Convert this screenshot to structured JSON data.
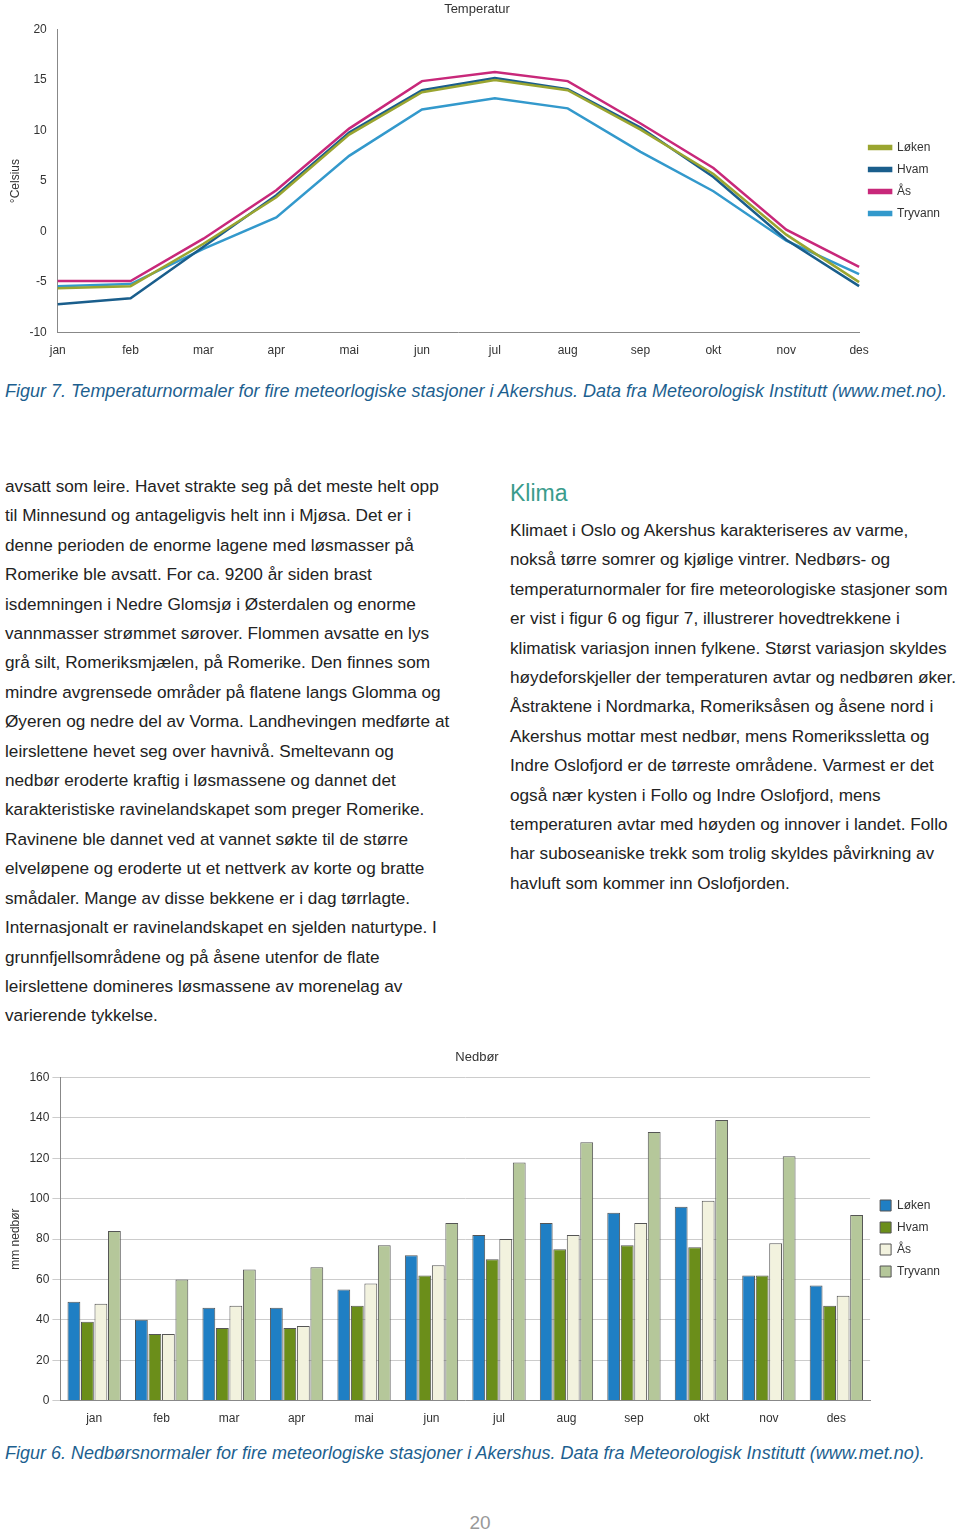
{
  "chart_data": [
    {
      "type": "line",
      "title": "Temperatur",
      "ylabel": "°Celsius",
      "categories": [
        "jan",
        "feb",
        "mar",
        "apr",
        "mai",
        "jun",
        "jul",
        "aug",
        "sep",
        "okt",
        "nov",
        "des"
      ],
      "series": [
        {
          "name": "Løken",
          "color": "#9aa530",
          "values": [
            -5.6,
            -5.4,
            -1.2,
            3.4,
            9.6,
            13.8,
            15.0,
            14.0,
            10.1,
            5.7,
            -0.3,
            -5.0
          ]
        },
        {
          "name": "Hvam",
          "color": "#1a5e8c",
          "values": [
            -7.2,
            -6.6,
            -1.5,
            3.6,
            9.8,
            14.0,
            15.2,
            14.1,
            10.3,
            5.4,
            -0.8,
            -5.4
          ]
        },
        {
          "name": "Ås",
          "color": "#c8287a",
          "values": [
            -4.9,
            -4.9,
            -0.7,
            4.1,
            10.2,
            14.9,
            15.8,
            14.9,
            10.7,
            6.3,
            0.2,
            -3.5
          ]
        },
        {
          "name": "Tryvann",
          "color": "#3399cc",
          "values": [
            -5.4,
            -5.2,
            -1.7,
            1.4,
            7.5,
            12.1,
            13.2,
            12.2,
            7.9,
            4.0,
            -0.9,
            -4.2
          ]
        }
      ],
      "ylim": [
        -10,
        20
      ],
      "yticks": [
        -10,
        -5,
        0,
        5,
        10,
        15,
        20
      ],
      "grid": false,
      "legend": "right"
    },
    {
      "type": "bar",
      "title": "Nedbør",
      "ylabel": "mm nedbør",
      "categories": [
        "jan",
        "feb",
        "mar",
        "apr",
        "mai",
        "jun",
        "jul",
        "aug",
        "sep",
        "okt",
        "nov",
        "des"
      ],
      "series": [
        {
          "name": "Løken",
          "color": "#1f7fc4",
          "values": [
            49,
            40,
            46,
            46,
            55,
            72,
            82,
            88,
            93,
            96,
            62,
            57
          ]
        },
        {
          "name": "Hvam",
          "color": "#6b8e1a",
          "values": [
            39,
            33,
            36,
            36,
            47,
            62,
            70,
            75,
            77,
            76,
            62,
            47
          ]
        },
        {
          "name": "Ås",
          "color": "#f2f2de",
          "values": [
            48,
            33,
            47,
            37,
            58,
            67,
            80,
            82,
            88,
            99,
            78,
            52
          ]
        },
        {
          "name": "Tryvann",
          "color": "#b5c79a",
          "values": [
            84,
            60,
            65,
            66,
            77,
            88,
            118,
            128,
            133,
            139,
            121,
            92
          ]
        }
      ],
      "ylim": [
        0,
        160
      ],
      "yticks": [
        0,
        20,
        40,
        60,
        80,
        100,
        120,
        140,
        160
      ],
      "grid": true,
      "legend": "right"
    }
  ],
  "captions": [
    "Figur 7. Temperaturnormaler for fire meteorlogiske stasjoner i Akershus. Data fra Meteorologisk Institutt (www.met.no).",
    "Figur 6. Nedbørsnormaler for fire meteorlogiske stasjoner i Akershus. Data fra Meteorologisk Institutt (www.met.no)."
  ],
  "text": {
    "left": "avsatt som leire. Havet strakte seg på det meste helt opp til Minnesund og antageligvis helt inn i Mjøsa. Det er i denne perioden de enorme lagene med løsmasser på Romerike ble avsatt. For ca. 9200 år siden brast isdemningen i Nedre Glomsjø i Østerdalen og enorme vannmasser strømmet sørover. Flommen avsatte en lys grå silt, Romeriksmjælen, på Romerike. Den finnes som mindre avgrensede områder på flatene langs Glomma og Øyeren og nedre del av Vorma. Landhevingen medførte at leirslettene hevet seg over havnivå. Smeltevann og nedbør eroderte kraftig i løsmassene og dannet det karakteristiske ravinelandskapet som preger Romerike. Ravinene ble dannet ved at vannet søkte til de større elveløpene og eroderte ut et nettverk av korte og bratte smådaler. Mange av disse bekkene er i dag tørrlagte. Internasjonalt er ravinelandskapet en sjelden naturtype. I grunnfjellsområdene og på åsene utenfor de flate leirslettene domineres løsmassene av morenelag av varierende tykkelse.",
    "right_heading": "Klima",
    "right": "Klimaet i Oslo og Akershus karakteriseres av varme, nokså tørre somrer og kjølige vintrer. Nedbørs- og temperaturnormaler for fire meteorologiske stasjoner som er vist i figur 6 og figur 7, illustrerer hovedtrekkene i klimatisk variasjon innen fylkene. Størst variasjon skyldes høydeforskjeller der temperaturen avtar og nedbøren øker. Åstraktene i Nordmarka, Romeriksåsen og åsene nord i Akershus mottar mest nedbør, mens Romerikssletta og Indre Oslofjord er de tørreste områdene. Varmest er det også nær kysten i Follo og Indre Oslofjord, mens temperaturen avtar med høyden og innover i landet. Follo har suboseaniske trekk som trolig skyldes påvirkning av havluft som kommer inn Oslofjorden."
  },
  "page_number": "20"
}
